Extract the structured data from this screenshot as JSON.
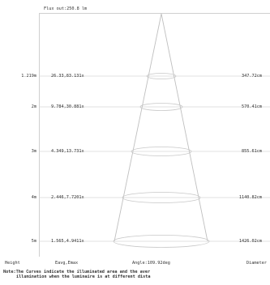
{
  "flux_label": "Flux out:250.8 lm",
  "rows": [
    {
      "height": "1.219m",
      "lux": "26.33,83.131x",
      "diameter": "347.72cm"
    },
    {
      "height": "2m",
      "lux": "9.784,30.881x",
      "diameter": "570.41cm"
    },
    {
      "height": "3m",
      "lux": "4.349,13.731x",
      "diameter": "855.61cm"
    },
    {
      "height": "4m",
      "lux": "2.446,7.7201x",
      "diameter": "1140.82cm"
    },
    {
      "height": "5m",
      "lux": "1.565,4.9411x",
      "diameter": "1426.02cm"
    }
  ],
  "footer": {
    "height_label": "Height",
    "lux_label": "Eavg,Emax",
    "angle_label": "Angle:109.92deg",
    "diameter_label": "Diameter"
  },
  "note": {
    "prefix": "Note:",
    "line1": "The Curves indicate the illuminated area and the aver",
    "line2": "illumination when the luminaire is at different dista"
  }
}
